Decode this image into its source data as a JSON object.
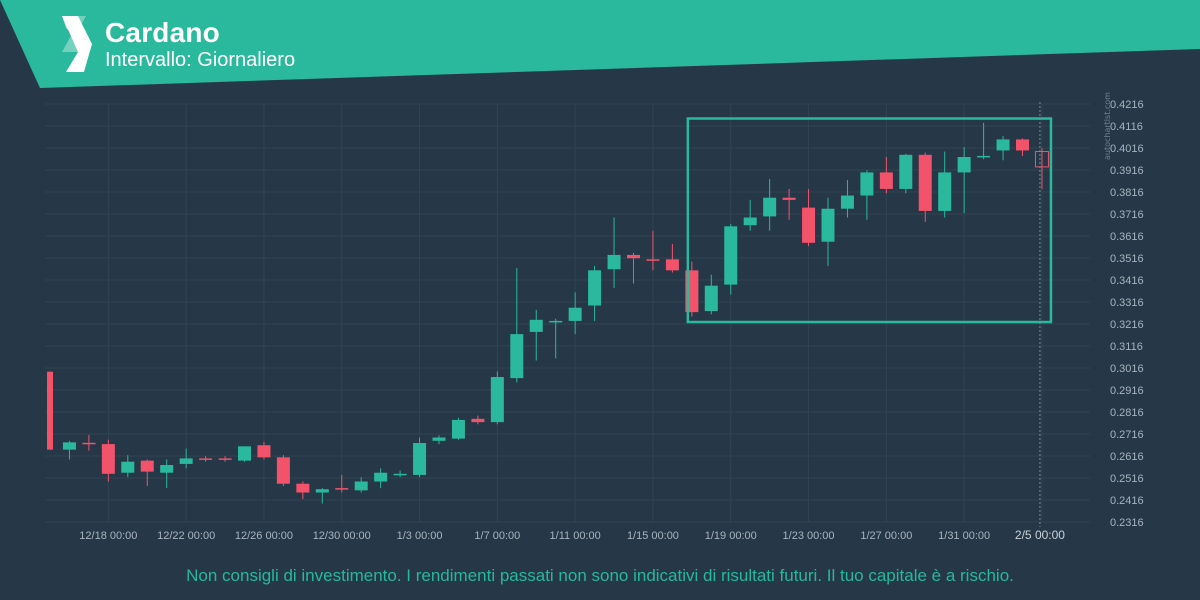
{
  "header": {
    "title": "Cardano",
    "subtitle": "Intervallo: Giornaliero",
    "banner_color": "#2ab99c"
  },
  "watermark": "autochartist.com",
  "disclaimer": "Non consigli di investimento. I rendimenti passati non sono indicativi di risultati futuri. Il tuo capitale è a rischio.",
  "colors": {
    "background": "#263848",
    "bullish": "#2ab99c",
    "bearish": "#f2536b",
    "pattern_box": "#2ab99c",
    "grid": "#31444f",
    "text": "#a7b4be"
  },
  "chart_data": {
    "type": "candlestick",
    "symbol": "Cardano",
    "interval": "Giornaliero",
    "y_ticks": [
      "0.2316",
      "0.2416",
      "0.2516",
      "0.2616",
      "0.2716",
      "0.2816",
      "0.2916",
      "0.3016",
      "0.3116",
      "0.3216",
      "0.3316",
      "0.3416",
      "0.3516",
      "0.3616",
      "0.3716",
      "0.3816",
      "0.3916",
      "0.4016",
      "0.4116",
      "0.4216"
    ],
    "ylim": [
      0.2316,
      0.4216
    ],
    "x_ticks": [
      "12/18 00:00",
      "12/22 00:00",
      "12/26 00:00",
      "12/30 00:00",
      "1/3 00:00",
      "1/7 00:00",
      "1/11 00:00",
      "1/15 00:00",
      "1/19 00:00",
      "1/23 00:00",
      "1/27 00:00",
      "1/31 00:00",
      "2/5 00:00"
    ],
    "x_tick_index": [
      3,
      7,
      11,
      15,
      19,
      23,
      27,
      31,
      35,
      39,
      43,
      47,
      51
    ],
    "highlighted_x_tick": "2/5 00:00",
    "candles": [
      {
        "o": 0.2999,
        "h": 0.2999,
        "l": 0.2645,
        "c": 0.2645
      },
      {
        "o": 0.2645,
        "h": 0.2685,
        "l": 0.26,
        "c": 0.2678
      },
      {
        "o": 0.2676,
        "h": 0.2712,
        "l": 0.264,
        "c": 0.267
      },
      {
        "o": 0.267,
        "h": 0.269,
        "l": 0.25,
        "c": 0.2535
      },
      {
        "o": 0.254,
        "h": 0.262,
        "l": 0.252,
        "c": 0.259
      },
      {
        "o": 0.2595,
        "h": 0.26,
        "l": 0.248,
        "c": 0.2545
      },
      {
        "o": 0.254,
        "h": 0.26,
        "l": 0.247,
        "c": 0.2575
      },
      {
        "o": 0.258,
        "h": 0.265,
        "l": 0.256,
        "c": 0.2605
      },
      {
        "o": 0.2605,
        "h": 0.2615,
        "l": 0.259,
        "c": 0.26
      },
      {
        "o": 0.2605,
        "h": 0.2615,
        "l": 0.259,
        "c": 0.26
      },
      {
        "o": 0.2595,
        "h": 0.266,
        "l": 0.259,
        "c": 0.266
      },
      {
        "o": 0.2665,
        "h": 0.268,
        "l": 0.26,
        "c": 0.261
      },
      {
        "o": 0.261,
        "h": 0.262,
        "l": 0.248,
        "c": 0.249
      },
      {
        "o": 0.249,
        "h": 0.25,
        "l": 0.242,
        "c": 0.245
      },
      {
        "o": 0.245,
        "h": 0.247,
        "l": 0.24,
        "c": 0.2465
      },
      {
        "o": 0.247,
        "h": 0.253,
        "l": 0.245,
        "c": 0.2465
      },
      {
        "o": 0.246,
        "h": 0.252,
        "l": 0.245,
        "c": 0.25
      },
      {
        "o": 0.25,
        "h": 0.256,
        "l": 0.247,
        "c": 0.254
      },
      {
        "o": 0.253,
        "h": 0.255,
        "l": 0.252,
        "c": 0.2535
      },
      {
        "o": 0.253,
        "h": 0.27,
        "l": 0.252,
        "c": 0.2675
      },
      {
        "o": 0.2685,
        "h": 0.271,
        "l": 0.267,
        "c": 0.27
      },
      {
        "o": 0.2695,
        "h": 0.279,
        "l": 0.269,
        "c": 0.278
      },
      {
        "o": 0.2785,
        "h": 0.28,
        "l": 0.276,
        "c": 0.277
      },
      {
        "o": 0.277,
        "h": 0.3,
        "l": 0.276,
        "c": 0.2975
      },
      {
        "o": 0.297,
        "h": 0.347,
        "l": 0.295,
        "c": 0.317
      },
      {
        "o": 0.318,
        "h": 0.328,
        "l": 0.305,
        "c": 0.3235
      },
      {
        "o": 0.3225,
        "h": 0.324,
        "l": 0.306,
        "c": 0.323
      },
      {
        "o": 0.323,
        "h": 0.336,
        "l": 0.317,
        "c": 0.329
      },
      {
        "o": 0.33,
        "h": 0.348,
        "l": 0.323,
        "c": 0.346
      },
      {
        "o": 0.3465,
        "h": 0.37,
        "l": 0.338,
        "c": 0.353
      },
      {
        "o": 0.353,
        "h": 0.354,
        "l": 0.34,
        "c": 0.3515
      },
      {
        "o": 0.351,
        "h": 0.364,
        "l": 0.346,
        "c": 0.3505
      },
      {
        "o": 0.351,
        "h": 0.358,
        "l": 0.345,
        "c": 0.346
      },
      {
        "o": 0.346,
        "h": 0.35,
        "l": 0.325,
        "c": 0.327
      },
      {
        "o": 0.3275,
        "h": 0.344,
        "l": 0.326,
        "c": 0.339
      },
      {
        "o": 0.3395,
        "h": 0.367,
        "l": 0.335,
        "c": 0.366
      },
      {
        "o": 0.3665,
        "h": 0.378,
        "l": 0.364,
        "c": 0.37
      },
      {
        "o": 0.3705,
        "h": 0.3875,
        "l": 0.364,
        "c": 0.379
      },
      {
        "o": 0.379,
        "h": 0.383,
        "l": 0.369,
        "c": 0.378
      },
      {
        "o": 0.3745,
        "h": 0.383,
        "l": 0.357,
        "c": 0.3585
      },
      {
        "o": 0.359,
        "h": 0.379,
        "l": 0.348,
        "c": 0.374
      },
      {
        "o": 0.374,
        "h": 0.387,
        "l": 0.37,
        "c": 0.38
      },
      {
        "o": 0.38,
        "h": 0.3915,
        "l": 0.369,
        "c": 0.3905
      },
      {
        "o": 0.3905,
        "h": 0.3975,
        "l": 0.381,
        "c": 0.383
      },
      {
        "o": 0.383,
        "h": 0.399,
        "l": 0.381,
        "c": 0.3985
      },
      {
        "o": 0.3985,
        "h": 0.3995,
        "l": 0.368,
        "c": 0.373
      },
      {
        "o": 0.373,
        "h": 0.4,
        "l": 0.37,
        "c": 0.3905
      },
      {
        "o": 0.3905,
        "h": 0.402,
        "l": 0.372,
        "c": 0.3975
      },
      {
        "o": 0.3975,
        "h": 0.413,
        "l": 0.3965,
        "c": 0.398
      },
      {
        "o": 0.4005,
        "h": 0.407,
        "l": 0.396,
        "c": 0.4055
      },
      {
        "o": 0.4055,
        "h": 0.406,
        "l": 0.398,
        "c": 0.4005
      },
      {
        "o": 0.4,
        "h": 0.4015,
        "l": 0.383,
        "c": 0.393,
        "hollow": true
      }
    ],
    "pattern_box": {
      "start_index": 33,
      "end_index": 51,
      "y_top": 0.415,
      "y_bottom": 0.3225
    }
  }
}
